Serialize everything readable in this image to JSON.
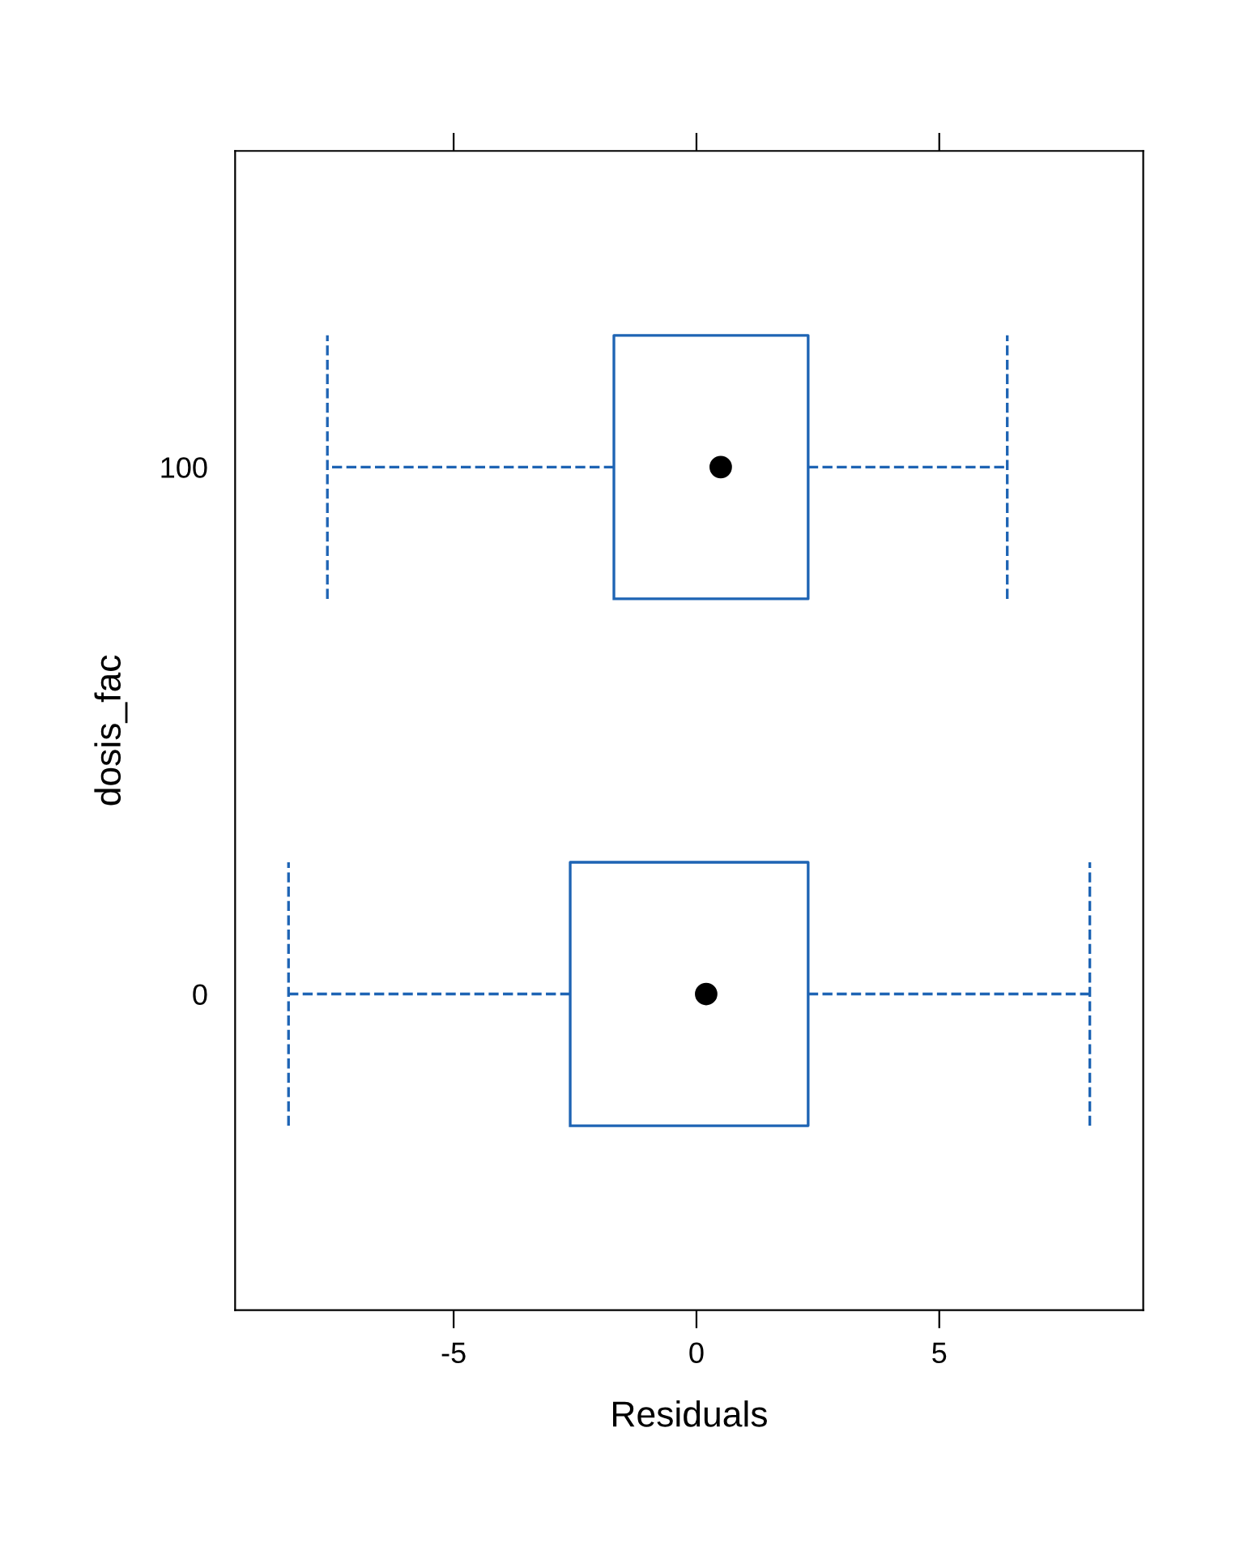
{
  "chart_data": {
    "type": "box",
    "orientation": "horizontal",
    "xlabel": "Residuals",
    "ylabel": "dosis_fac",
    "categories": [
      "100",
      "0"
    ],
    "series": [
      {
        "color": "#1e64b4",
        "boxes": [
          {
            "low": -7.6,
            "q1": -1.7,
            "median": 0.5,
            "q3": 2.3,
            "high": 6.4
          },
          {
            "low": -8.4,
            "q1": -2.6,
            "median": 0.2,
            "q3": 2.3,
            "high": 8.1
          }
        ]
      }
    ],
    "xlim": [
      -9.5,
      9.2
    ],
    "xticks": [
      -5,
      0,
      5
    ],
    "line_style": "dashed",
    "grid": false
  }
}
